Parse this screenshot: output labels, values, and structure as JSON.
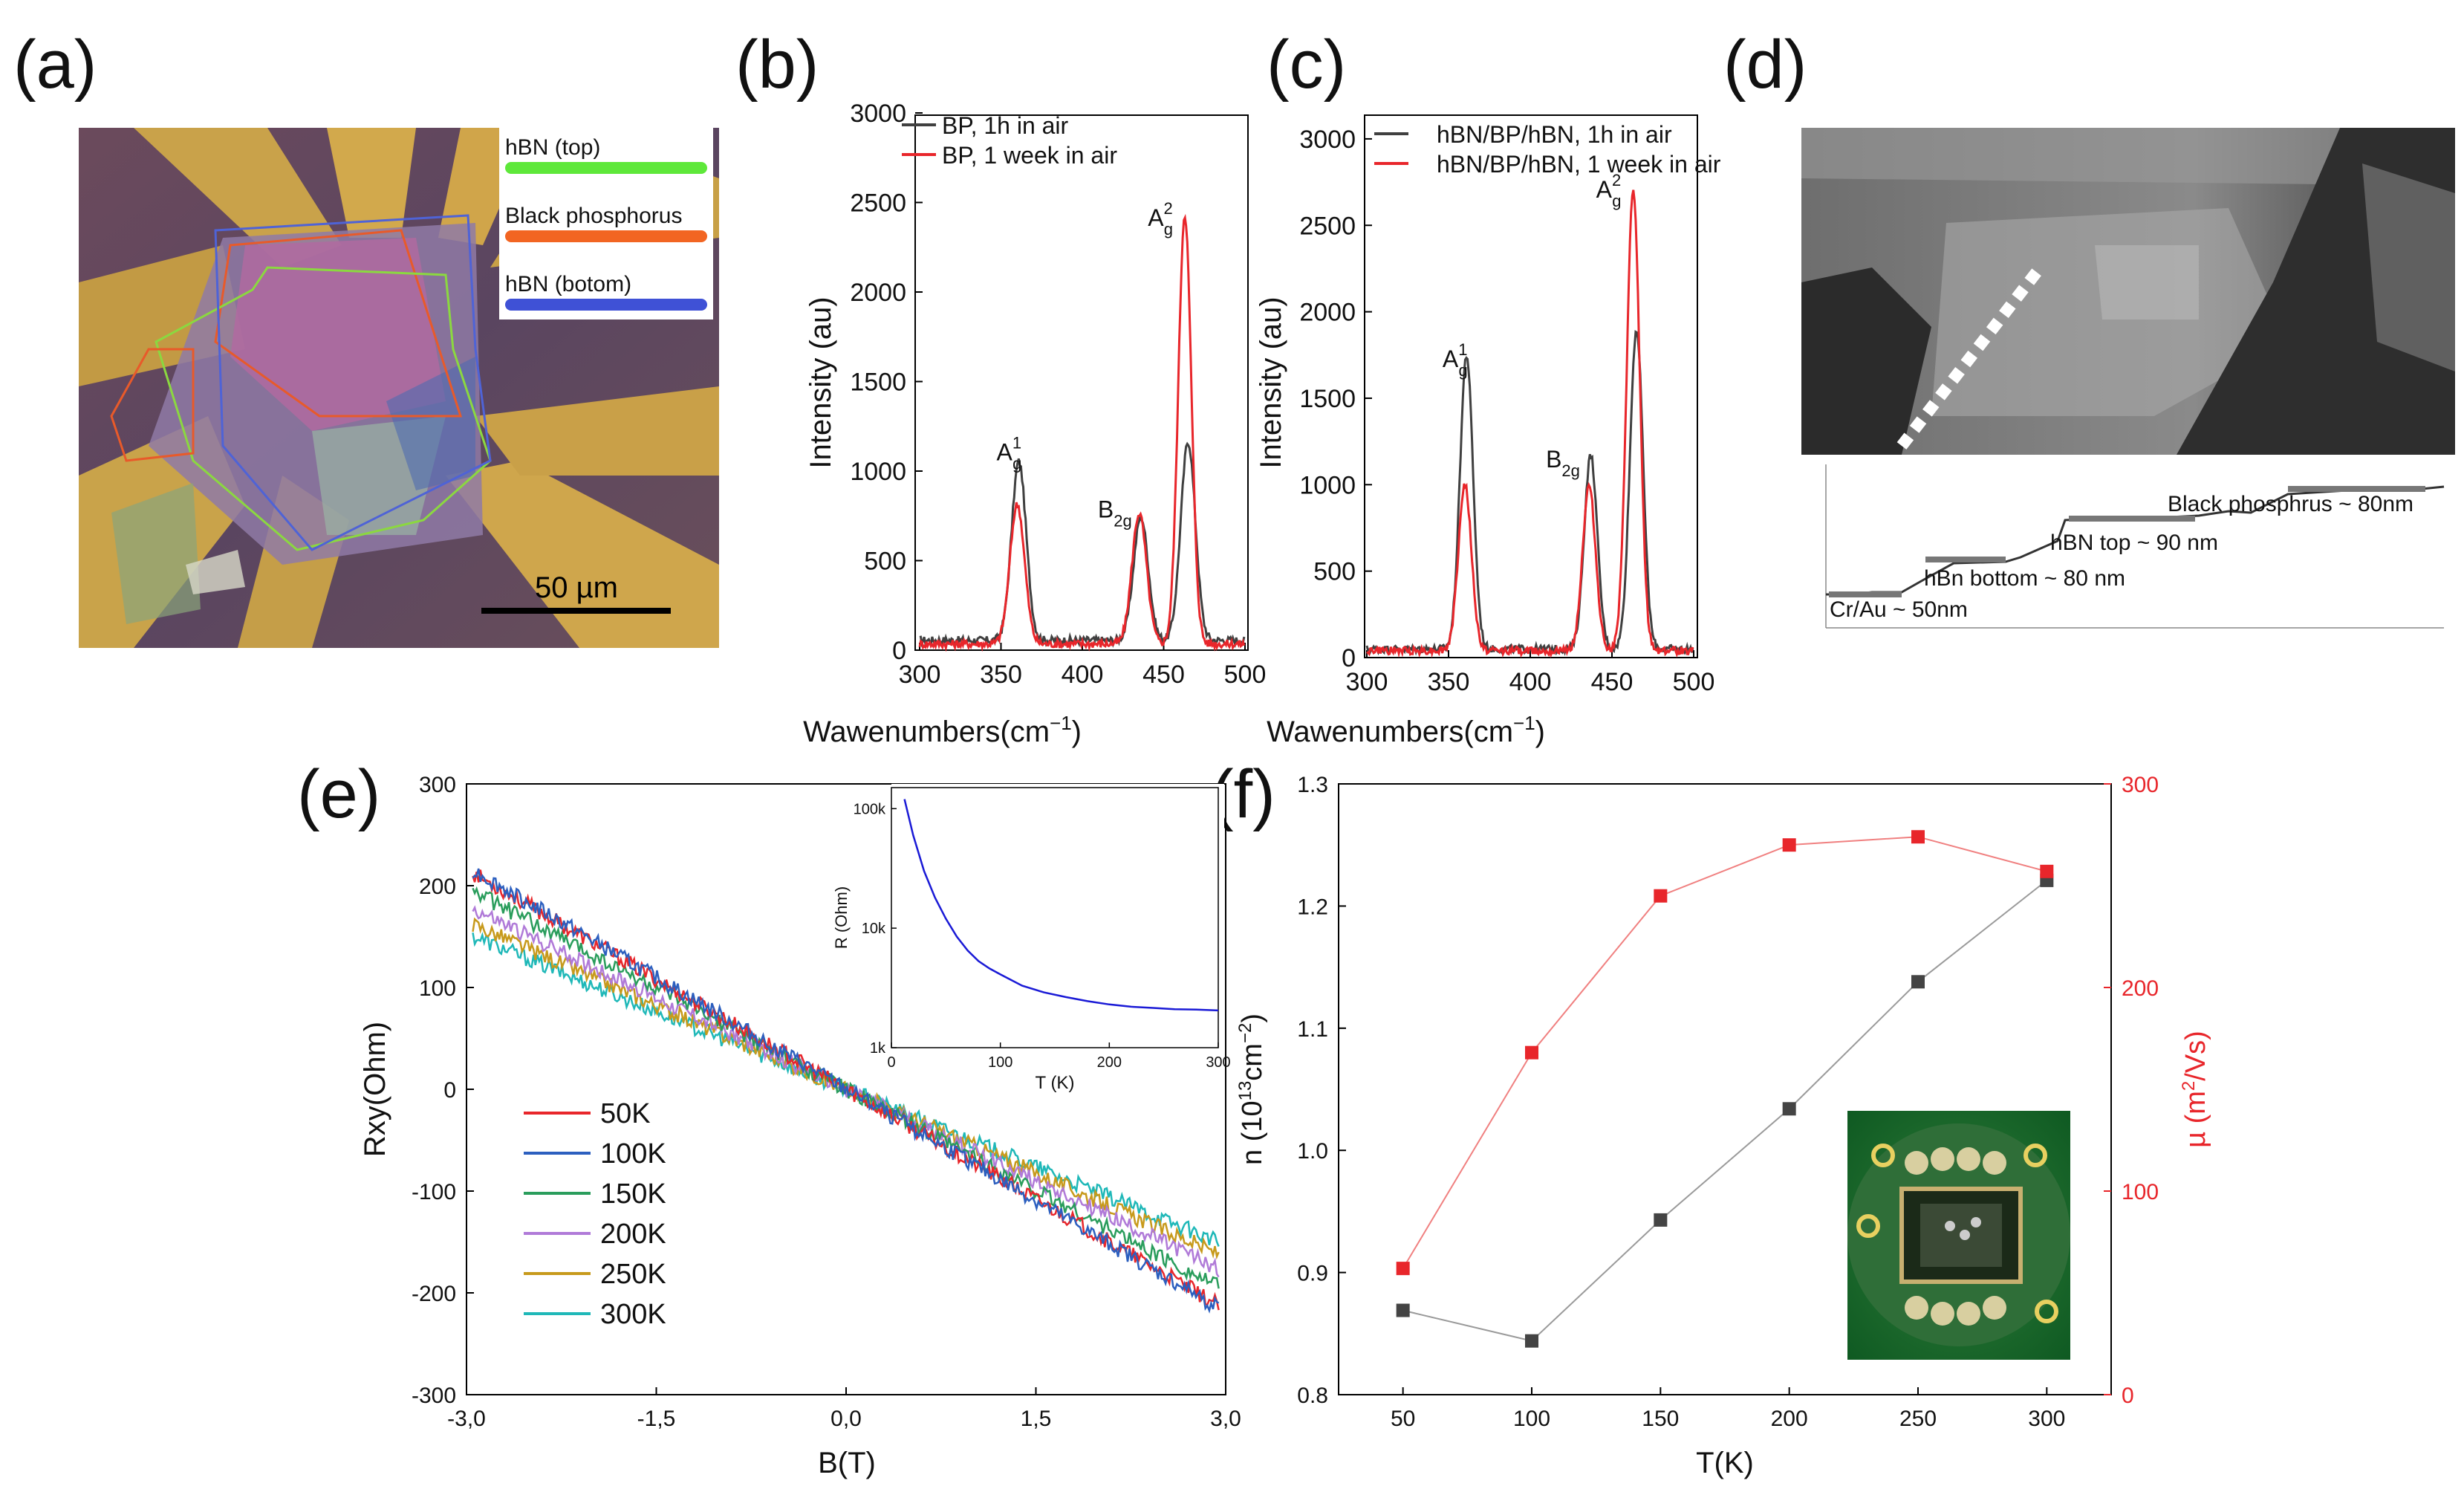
{
  "panel_labels": {
    "a": "(a)",
    "b": "(b)",
    "c": "(c)",
    "d": "(d)",
    "e": "(e)",
    "f": "(f)"
  },
  "panel_a": {
    "legend": [
      "hBN (top)",
      "Black phosphorus",
      "hBN (botom)"
    ],
    "legend_colors": [
      "#5ee83a",
      "#f26522",
      "#3f51d6"
    ],
    "scale_bar": "50 µm"
  },
  "panel_d": {
    "labels": [
      "Black phosphrus ~ 80nm",
      "hBN top ~ 90 nm",
      "hBn bottom ~ 80 nm",
      "Cr/Au ~ 50nm"
    ]
  },
  "chart_data": [
    {
      "id": "b",
      "type": "line",
      "xlabel": "Wawenumbers(cm",
      "xlabel_sup": "−1",
      "ylabel": "Intensity (au)",
      "xlim": [
        300,
        500
      ],
      "ylim": [
        0,
        3000
      ],
      "x_ticks": [
        300,
        350,
        400,
        450,
        500
      ],
      "y_ticks": [
        0,
        500,
        1000,
        1500,
        2000,
        2500,
        3000
      ],
      "series": [
        {
          "name": "BP, 1h in air",
          "color": "#404040",
          "peaks": [
            [
              361,
              1000,
              4.5
            ],
            [
              436,
              690,
              4.5
            ],
            [
              465,
              1110,
              4.5
            ]
          ],
          "baseline": 55
        },
        {
          "name": "BP, 1 week in air",
          "color": "#e8262b",
          "peaks": [
            [
              360,
              780,
              4.5
            ],
            [
              435,
              730,
              4.5
            ],
            [
              463,
              2400,
              4.0
            ]
          ],
          "baseline": 35
        }
      ],
      "annotations": [
        {
          "main": "A",
          "sub": "g",
          "sup": "1",
          "x": 355,
          "y": 1060
        },
        {
          "main": "B",
          "sub": "2g",
          "sup": "",
          "x": 420,
          "y": 740
        },
        {
          "main": "A",
          "sub": "g",
          "sup": "2",
          "x": 448,
          "y": 2370
        }
      ]
    },
    {
      "id": "c",
      "type": "line",
      "xlabel": "Wawenumbers(cm",
      "xlabel_sup": "−1",
      "ylabel": "Intensity (au)",
      "xlim": [
        300,
        500
      ],
      "ylim": [
        0,
        3150
      ],
      "x_ticks": [
        300,
        350,
        400,
        450,
        500
      ],
      "y_ticks": [
        0,
        500,
        1000,
        1500,
        2000,
        2500,
        3000
      ],
      "series": [
        {
          "name": "hBN/BP/hBN, 1h in air",
          "color": "#404040",
          "peaks": [
            [
              361,
              1700,
              4.0
            ],
            [
              437,
              1120,
              4.0
            ],
            [
              465,
              1850,
              4.0
            ]
          ],
          "baseline": 50
        },
        {
          "name": "hBN/BP/hBN, 1 week in air",
          "color": "#e8262b",
          "peaks": [
            [
              360,
              960,
              4.0
            ],
            [
              436,
              950,
              4.0
            ],
            [
              463,
              2660,
              4.0
            ]
          ],
          "baseline": 40
        }
      ],
      "annotations": [
        {
          "main": "A",
          "sub": "g",
          "sup": "1",
          "x": 354,
          "y": 1680
        },
        {
          "main": "B",
          "sub": "2g",
          "sup": "",
          "x": 420,
          "y": 1100
        },
        {
          "main": "A",
          "sub": "g",
          "sup": "2",
          "x": 448,
          "y": 2660
        }
      ]
    },
    {
      "id": "e",
      "type": "line",
      "xlabel": "B(T)",
      "ylabel": "Rxy(Ohm)",
      "xlim": [
        -3.0,
        3.0
      ],
      "ylim": [
        -300,
        300
      ],
      "x_ticks": [
        -3.0,
        -1.5,
        0.0,
        1.5,
        3.0
      ],
      "x_tick_labels": [
        "-3,0",
        "-1,5",
        "0,0",
        "1,5",
        "3,0"
      ],
      "y_ticks": [
        -300,
        -200,
        -100,
        0,
        100,
        200,
        300
      ],
      "series": [
        {
          "name": "50K",
          "color": "#e8262b",
          "slope": -72
        },
        {
          "name": "100K",
          "color": "#2c5fbf",
          "slope": -73
        },
        {
          "name": "150K",
          "color": "#2a9d5c",
          "slope": -66
        },
        {
          "name": "200K",
          "color": "#b07ad8",
          "slope": -60
        },
        {
          "name": "250K",
          "color": "#c79a1c",
          "slope": -55
        },
        {
          "name": "300K",
          "color": "#1fb8b8",
          "slope": -51
        }
      ],
      "inset": {
        "type": "line",
        "xlabel": "T (K)",
        "ylabel": "R (Ohm)",
        "xlim": [
          0,
          300
        ],
        "y_scale": "log",
        "ylim": [
          1000,
          150000
        ],
        "x_ticks": [
          0,
          100,
          200,
          300
        ],
        "y_ticks": [
          1000,
          10000,
          100000
        ],
        "y_tick_labels": [
          "1k",
          "10k",
          "100k"
        ],
        "color": "#1a1ad6",
        "T": [
          12,
          20,
          30,
          40,
          50,
          60,
          70,
          80,
          90,
          100,
          120,
          140,
          160,
          180,
          200,
          220,
          240,
          260,
          280,
          300
        ],
        "R": [
          120000,
          60000,
          30000,
          18000,
          12000,
          8500,
          6500,
          5300,
          4600,
          4100,
          3300,
          2900,
          2650,
          2450,
          2300,
          2200,
          2150,
          2100,
          2080,
          2050
        ]
      }
    },
    {
      "id": "f",
      "type": "line",
      "xlabel": "T(K)",
      "ylabel_left": "n (10",
      "ylabel_left_sup1": "13",
      "ylabel_left_mid": "cm",
      "ylabel_left_sup2": "−2",
      "ylabel_left_end": ")",
      "ylabel_right": "µ (m",
      "ylabel_right_sup": "2",
      "ylabel_right_end": "/Vs)",
      "xlim": [
        25,
        325
      ],
      "x_ticks": [
        50,
        100,
        150,
        200,
        250,
        300
      ],
      "y_left_lim": [
        0.8,
        1.3
      ],
      "y_left_ticks": [
        0.8,
        0.9,
        1.0,
        1.1,
        1.2,
        1.3
      ],
      "y_right_lim": [
        0,
        300
      ],
      "y_right_ticks": [
        0,
        100,
        200,
        300
      ],
      "series": [
        {
          "name": "n",
          "axis": "left",
          "color": "#444444",
          "line_color": "#9a9a9a",
          "x": [
            50,
            100,
            150,
            200,
            250,
            300
          ],
          "y": [
            0.869,
            0.844,
            0.943,
            1.034,
            1.138,
            1.221
          ]
        },
        {
          "name": "mobility",
          "axis": "right",
          "color": "#e8262b",
          "line_color": "#f08080",
          "x": [
            50,
            100,
            150,
            200,
            250,
            300
          ],
          "y": [
            62,
            168,
            245,
            270,
            274,
            257
          ]
        }
      ]
    }
  ]
}
